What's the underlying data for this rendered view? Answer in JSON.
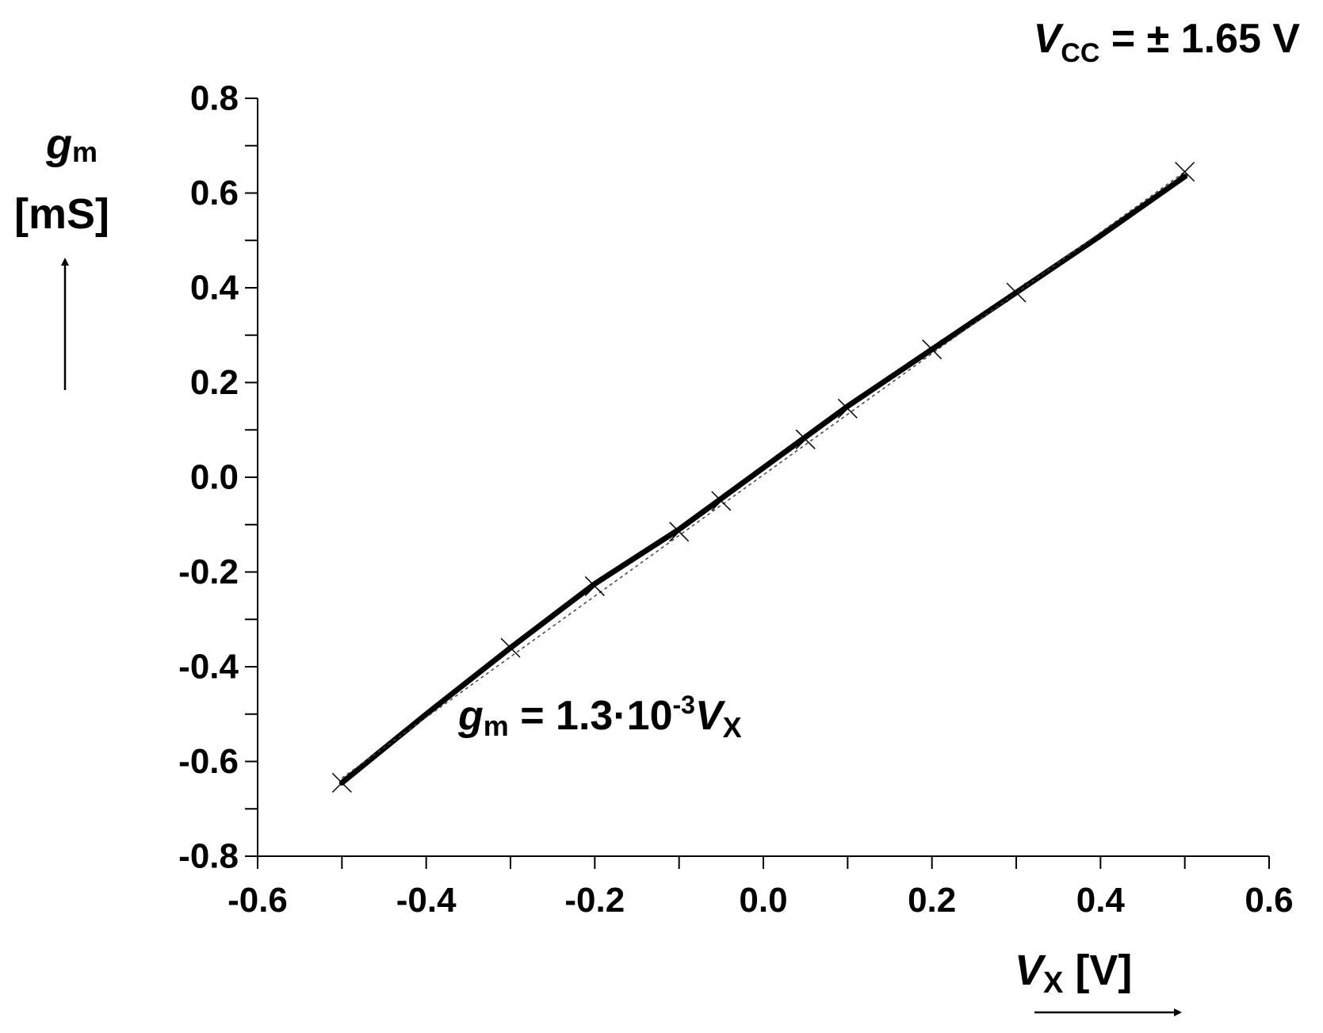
{
  "chart_data": {
    "type": "line",
    "annotation_top": {
      "var": "V",
      "sub": "CC",
      "rest": " = ± 1.65 V"
    },
    "ylabel": {
      "var": "g",
      "sub": "m",
      "unit": "[mS]"
    },
    "xlabel": {
      "var": "V",
      "sub": "X",
      "unit": " [V]"
    },
    "equation": {
      "lhs": "g",
      "lhs_sub": "m",
      "eq": " = 1.3·10",
      "exp": "-3",
      "var": "V",
      "var_sub": "X"
    },
    "xlim": [
      -0.6,
      0.6
    ],
    "ylim": [
      -0.8,
      0.8
    ],
    "x_ticks": [
      "-0.6",
      "-0.4",
      "-0.2",
      "0.0",
      "0.2",
      "0.4",
      "0.6"
    ],
    "y_ticks": [
      "0.8",
      "0.6",
      "0.4",
      "0.2",
      "0.0",
      "-0.2",
      "-0.4",
      "-0.6",
      "-0.8"
    ],
    "series": [
      {
        "style": "solid",
        "color": "#000000",
        "x": [
          -0.5,
          -0.4,
          -0.3,
          -0.2,
          -0.1,
          0.0,
          0.1,
          0.2,
          0.3,
          0.4,
          0.5
        ],
        "y": [
          -0.645,
          -0.5,
          -0.36,
          -0.225,
          -0.11,
          0.02,
          0.15,
          0.27,
          0.39,
          0.51,
          0.635
        ]
      },
      {
        "style": "dotted",
        "color": "#444444",
        "x": [
          -0.5,
          0.5
        ],
        "y": [
          -0.635,
          0.645
        ]
      }
    ],
    "markers": {
      "symbol": "x",
      "x": [
        -0.5,
        -0.3,
        -0.2,
        -0.1,
        -0.05,
        0.05,
        0.1,
        0.2,
        0.3,
        0.5
      ],
      "y": [
        -0.645,
        -0.36,
        -0.23,
        -0.115,
        -0.05,
        0.08,
        0.145,
        0.27,
        0.39,
        0.645
      ]
    }
  }
}
